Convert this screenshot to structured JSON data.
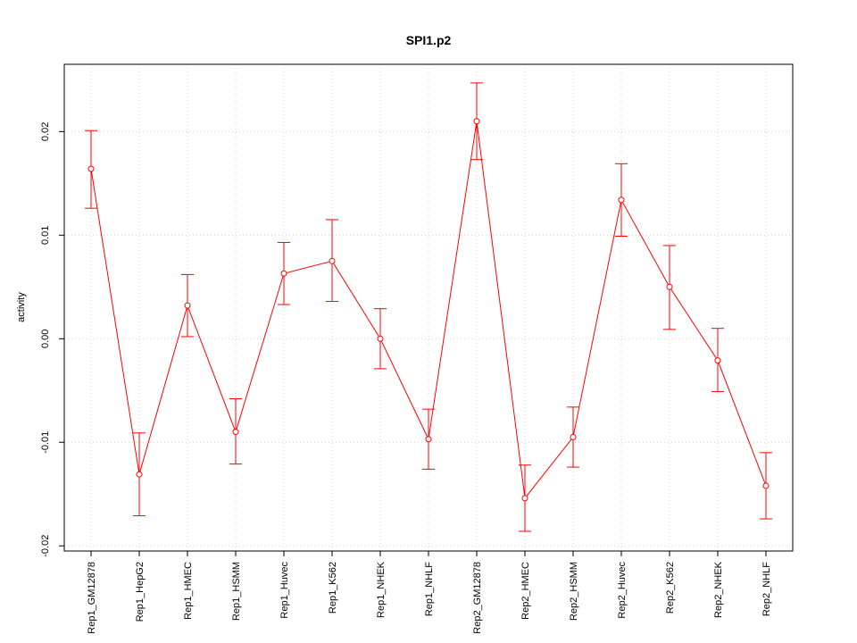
{
  "chart_data": {
    "type": "line",
    "title": "SPI1.p2",
    "xlabel": "",
    "ylabel": "activity",
    "ylim": [
      -0.0205,
      0.0265
    ],
    "yticks": [
      -0.02,
      -0.01,
      0.0,
      0.01,
      0.02
    ],
    "ytick_labels": [
      "-0.02",
      "-0.01",
      "0.00",
      "0.01",
      "0.02"
    ],
    "grid": true,
    "colors": {
      "series": "#ff0000",
      "grid": "#d3d3d3",
      "axis": "#000000"
    },
    "categories": [
      "Rep1_GM12878",
      "Rep1_HepG2",
      "Rep1_HMEC",
      "Rep1_HSMM",
      "Rep1_Huvec",
      "Rep1_K562",
      "Rep1_NHEK",
      "Rep1_NHLF",
      "Rep2_GM12878",
      "Rep2_HMEC",
      "Rep2_HSMM",
      "Rep2_Huvec",
      "Rep2_K562",
      "Rep2_NHEK",
      "Rep2_NHLF"
    ],
    "series": [
      {
        "values": [
          0.0164,
          -0.0131,
          0.0032,
          -0.009,
          0.0063,
          0.0075,
          0.0,
          -0.0097,
          0.021,
          -0.0154,
          -0.0095,
          0.0134,
          0.005,
          -0.0021,
          -0.0142
        ],
        "upper": [
          0.0201,
          -0.0091,
          0.0062,
          -0.0058,
          0.0093,
          0.0115,
          0.0029,
          -0.0068,
          0.0247,
          -0.0122,
          -0.0066,
          0.0169,
          0.009,
          0.001,
          -0.011
        ],
        "lower": [
          0.0126,
          -0.0171,
          0.0002,
          -0.0121,
          0.0033,
          0.0036,
          -0.0029,
          -0.0126,
          0.0173,
          -0.0186,
          -0.0124,
          0.0099,
          0.0009,
          -0.0051,
          -0.0174
        ]
      }
    ]
  }
}
